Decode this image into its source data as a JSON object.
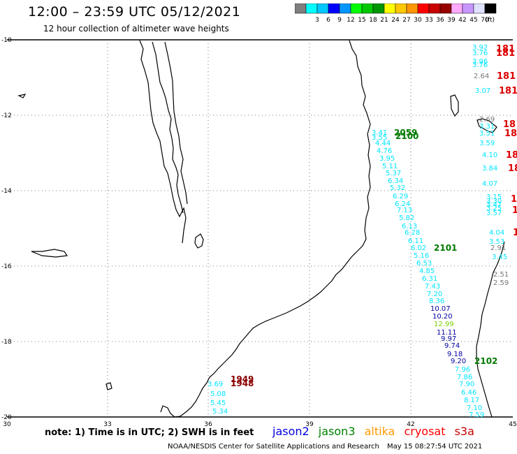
{
  "header": {
    "title": "12:00 – 23:59 UTC 05/12/2021",
    "subtitle": "12 hour collection of altimeter wave heights"
  },
  "color_scale": {
    "bins": [
      {
        "label": "",
        "color": "#7f7f7f"
      },
      {
        "label": "3",
        "color": "#00ffff"
      },
      {
        "label": "6",
        "color": "#00c8ff"
      },
      {
        "label": "9",
        "color": "#0000ff"
      },
      {
        "label": "12",
        "color": "#0096ff"
      },
      {
        "label": "15",
        "color": "#00ff00"
      },
      {
        "label": "18",
        "color": "#00c800"
      },
      {
        "label": "21",
        "color": "#009600"
      },
      {
        "label": "24",
        "color": "#ffff00"
      },
      {
        "label": "27",
        "color": "#ffc800"
      },
      {
        "label": "30",
        "color": "#ff9600"
      },
      {
        "label": "33",
        "color": "#ff0000"
      },
      {
        "label": "36",
        "color": "#c80000"
      },
      {
        "label": "39",
        "color": "#960000"
      },
      {
        "label": "42",
        "color": "#ffaaff"
      },
      {
        "label": "45",
        "color": "#c896ff"
      },
      {
        "label": "70",
        "color": "#e0e0ff"
      },
      {
        "label": "",
        "color": "#000000"
      }
    ],
    "unit": "(ft)"
  },
  "axes": {
    "lat_ticks": [
      "-10",
      "-12",
      "-14",
      "-16",
      "-18",
      "-20"
    ],
    "lon_ticks": [
      "30",
      "33",
      "36",
      "39",
      "42",
      "45"
    ]
  },
  "satellite_colors": {
    "cyan": "#00e5ff",
    "gray": "#777777",
    "navy": "#0000a0",
    "green": "#007a00",
    "lime": "#7bd000",
    "red": "#dd0000",
    "maroon": "#8b0000"
  },
  "observations": {
    "track_main": [
      {
        "v": "3.41",
        "c": "cyan"
      },
      {
        "v": "3.55",
        "c": "cyan"
      },
      {
        "v": "4.44",
        "c": "cyan"
      },
      {
        "v": "4.76",
        "c": "cyan"
      },
      {
        "v": "3.95",
        "c": "cyan"
      },
      {
        "v": "5.11",
        "c": "cyan"
      },
      {
        "v": "5.37",
        "c": "cyan"
      },
      {
        "v": "6.34",
        "c": "cyan"
      },
      {
        "v": "5.32",
        "c": "cyan"
      },
      {
        "v": "6.29",
        "c": "cyan"
      },
      {
        "v": "6.24",
        "c": "cyan"
      },
      {
        "v": "7.13",
        "c": "cyan"
      },
      {
        "v": "5.82",
        "c": "cyan"
      },
      {
        "v": "6.13",
        "c": "cyan"
      },
      {
        "v": "6.28",
        "c": "cyan"
      },
      {
        "v": "6.11",
        "c": "cyan"
      },
      {
        "v": "6.02",
        "c": "cyan"
      },
      {
        "v": "5.16",
        "c": "cyan"
      },
      {
        "v": "6.53",
        "c": "cyan"
      },
      {
        "v": "4.85",
        "c": "cyan"
      },
      {
        "v": "6.31",
        "c": "cyan"
      },
      {
        "v": "7.43",
        "c": "cyan"
      },
      {
        "v": "7.20",
        "c": "cyan"
      },
      {
        "v": "8.36",
        "c": "cyan"
      },
      {
        "v": "10.07",
        "c": "navy"
      },
      {
        "v": "10.20",
        "c": "navy"
      },
      {
        "v": "12.99",
        "c": "lime"
      },
      {
        "v": "11.11",
        "c": "navy"
      },
      {
        "v": "9.97",
        "c": "navy"
      },
      {
        "v": "9.74",
        "c": "navy"
      },
      {
        "v": "9.18",
        "c": "navy"
      },
      {
        "v": "9.20",
        "c": "navy"
      },
      {
        "v": "7.96",
        "c": "cyan"
      },
      {
        "v": "7.86",
        "c": "cyan"
      },
      {
        "v": "7.90",
        "c": "cyan"
      },
      {
        "v": "6.46",
        "c": "cyan"
      },
      {
        "v": "8.17",
        "c": "cyan"
      },
      {
        "v": "7.10",
        "c": "cyan"
      },
      {
        "v": "7.59",
        "c": "cyan"
      }
    ],
    "track_east": [
      {
        "v": "3.92",
        "c": "cyan"
      },
      {
        "v": "3.76",
        "c": "cyan"
      },
      {
        "v": "3.96",
        "c": "cyan"
      },
      {
        "v": "3.76",
        "c": "cyan"
      },
      {
        "v": "2.64",
        "c": "gray"
      },
      {
        "v": "3.07",
        "c": "cyan"
      },
      {
        "v": "2.69",
        "c": "gray"
      },
      {
        "v": "3.31",
        "c": "cyan"
      },
      {
        "v": "3.51",
        "c": "cyan"
      },
      {
        "v": "3.59",
        "c": "cyan"
      },
      {
        "v": "4.10",
        "c": "cyan"
      },
      {
        "v": "3.84",
        "c": "cyan"
      },
      {
        "v": "4.07",
        "c": "cyan"
      },
      {
        "v": "3.15",
        "c": "cyan"
      },
      {
        "v": "3.30",
        "c": "cyan"
      },
      {
        "v": "3.47",
        "c": "cyan"
      },
      {
        "v": "3.25",
        "c": "cyan"
      },
      {
        "v": "3.57",
        "c": "cyan"
      },
      {
        "v": "4.04",
        "c": "cyan"
      },
      {
        "v": "3.53",
        "c": "cyan"
      },
      {
        "v": "2.91",
        "c": "gray"
      },
      {
        "v": "3.45",
        "c": "cyan"
      },
      {
        "v": "2.51",
        "c": "gray"
      },
      {
        "v": "2.59",
        "c": "gray"
      }
    ],
    "track_south": [
      {
        "v": "3.69",
        "c": "cyan"
      },
      {
        "v": "5.08",
        "c": "cyan"
      },
      {
        "v": "5.45",
        "c": "cyan"
      },
      {
        "v": "5.34",
        "c": "cyan"
      }
    ],
    "pass_labels": [
      {
        "v": "2059",
        "c": "green"
      },
      {
        "v": "2100",
        "c": "green"
      },
      {
        "v": "2101",
        "c": "green"
      },
      {
        "v": "2102",
        "c": "green"
      },
      {
        "v": "1949",
        "c": "maroon"
      },
      {
        "v": "1948",
        "c": "maroon"
      },
      {
        "v": "181",
        "c": "red"
      },
      {
        "v": "181",
        "c": "red"
      },
      {
        "v": "181",
        "c": "red"
      },
      {
        "v": "181",
        "c": "red"
      },
      {
        "v": "18",
        "c": "red"
      },
      {
        "v": "18",
        "c": "red"
      },
      {
        "v": "18",
        "c": "red"
      },
      {
        "v": "18",
        "c": "red"
      },
      {
        "v": "1",
        "c": "red"
      },
      {
        "v": "1",
        "c": "red"
      },
      {
        "v": "1",
        "c": "red"
      }
    ]
  },
  "footer": {
    "note": "note:  1) Time is in UTC;  2) SWH is in feet",
    "satellites": [
      {
        "name": "jason2",
        "color": "#0000e0"
      },
      {
        "name": "jason3",
        "color": "#008000"
      },
      {
        "name": "altika",
        "color": "#ff9900"
      },
      {
        "name": "cryosat",
        "color": "#ff0000"
      },
      {
        "name": "s3a",
        "color": "#c80000"
      }
    ],
    "credit": "NOAA/NESDIS Center for Satellite Applications and Research",
    "timestamp": "May 15 08:27:54 UTC 2021"
  }
}
